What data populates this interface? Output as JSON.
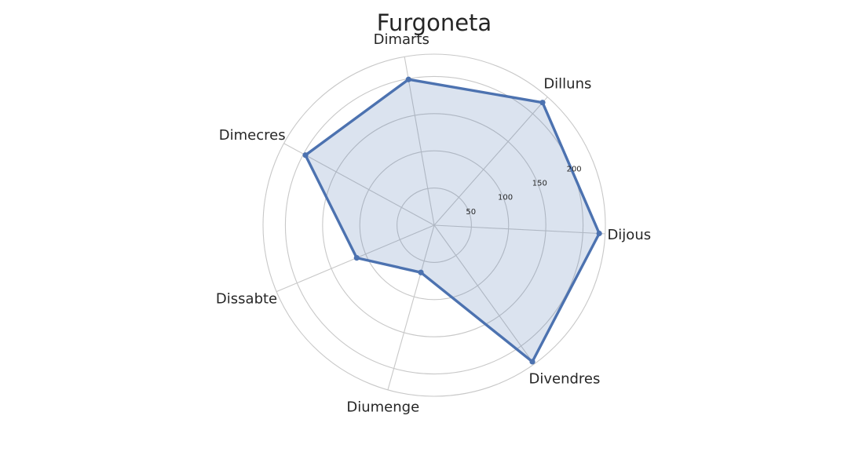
{
  "chart_data": {
    "type": "radar",
    "title": "Furgoneta",
    "categories": [
      "Dijous",
      "Dilluns",
      "Dimarts",
      "Dimecres",
      "Dissabte",
      "Diumenge",
      "Divendres"
    ],
    "values": [
      222,
      220,
      199,
      197,
      113,
      66,
      226
    ],
    "r_ticks": [
      50,
      100,
      150,
      200
    ],
    "r_tick_labels": [
      "50",
      "100",
      "150",
      "200"
    ],
    "rlim": [
      0,
      230
    ],
    "grid": true,
    "colors": {
      "series": "#4c72b0",
      "grid": "#c8c8c8"
    }
  }
}
